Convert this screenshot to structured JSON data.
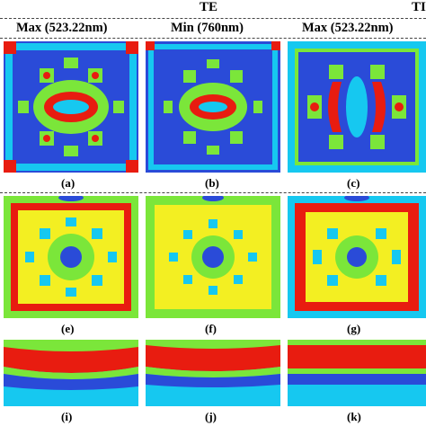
{
  "figure": {
    "group_labels": {
      "te": "TE",
      "tm_partial": "TI"
    },
    "column_titles": [
      "Max (523.22nm)",
      "Min (760nm)",
      "Max (523.22nm)"
    ],
    "captions": [
      "(a)",
      "(b)",
      "(c)",
      "(e)",
      "(f)",
      "(g)",
      "(i)",
      "(j)",
      "(k)"
    ],
    "colors": {
      "blue": "#2a4bd8",
      "cyan": "#16c8f0",
      "green": "#7be63a",
      "yellow": "#f3ef22",
      "red": "#e81c10",
      "dark_blue": "#1a1aa0"
    }
  }
}
